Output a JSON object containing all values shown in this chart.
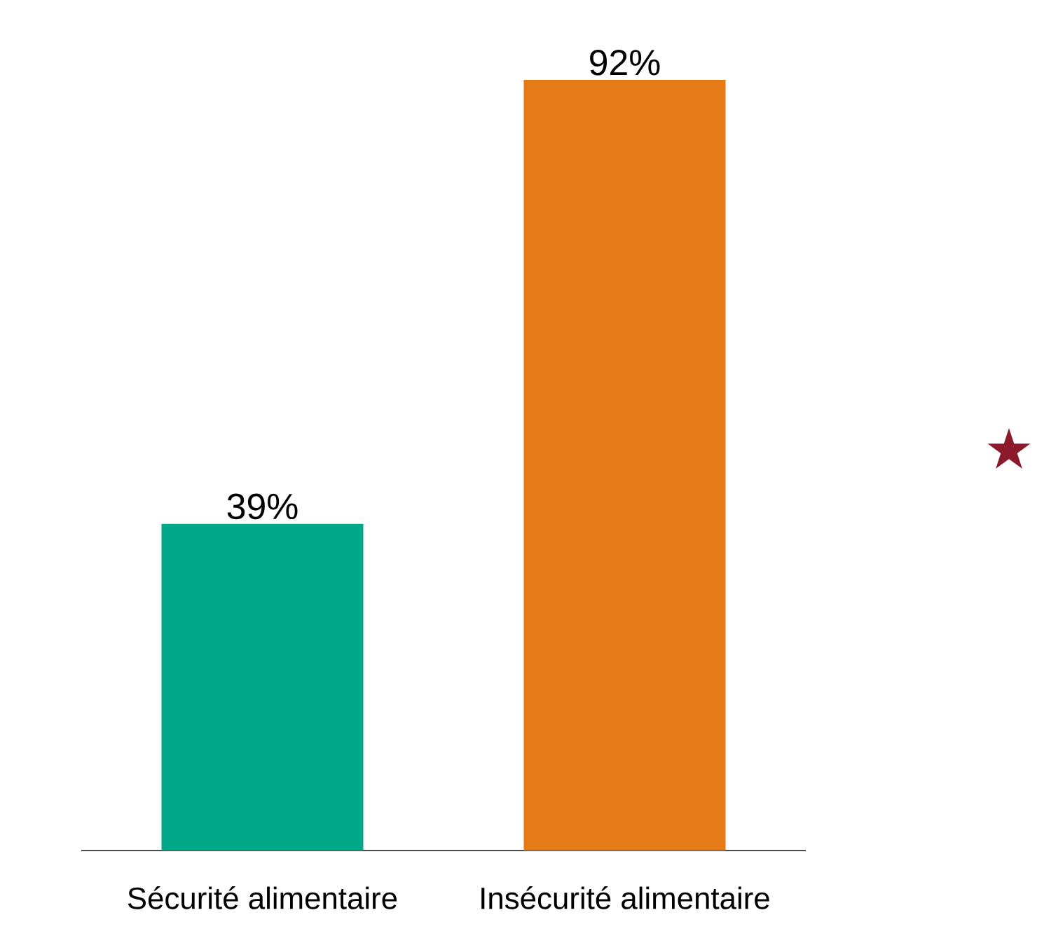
{
  "chart_data": {
    "type": "bar",
    "categories": [
      "Sécurité alimentaire",
      "Insécurité alimentaire"
    ],
    "values": [
      39,
      92
    ],
    "value_labels": [
      "39%",
      "92%"
    ],
    "colors": [
      "#00a88a",
      "#e67a17"
    ],
    "annotations": [
      "★"
    ]
  }
}
